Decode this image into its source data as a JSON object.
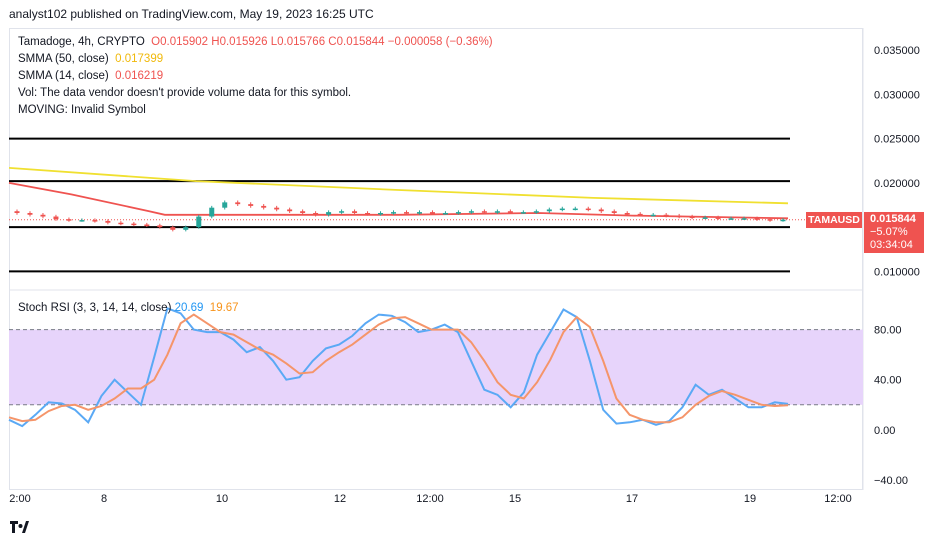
{
  "header": {
    "published": "analyst102 published on TradingView.com, May 19, 2023 16:25 UTC"
  },
  "legend": {
    "symbol": "Tamadoge, 4h, CRYPTO",
    "ohlc": "O0.015902 H0.015926 L0.015766 C0.015844 −0.000058 (−0.36%)",
    "sma50_label": "SMMA (50, close)",
    "sma50_value": "0.017399",
    "sma14_label": "SMMA (14, close)",
    "sma14_value": "0.016219",
    "vol_note": "Vol: The data vendor doesn't provide volume data for this symbol.",
    "moving_note": "MOVING: Invalid Symbol",
    "stoch_label": "Stoch RSI (3, 3, 14, 14, close)",
    "stoch_k": "20.69",
    "stoch_d": "19.67"
  },
  "ticker_box": "TAMAUSD",
  "price_tag": {
    "price": "0.015844",
    "change": "−5.07%",
    "countdown": "03:34:04"
  },
  "colors": {
    "sma50": "#f0e030",
    "sma14": "#ef5350",
    "k": "#5aa9f5",
    "d": "#f5956a",
    "band": "#e7d4fb"
  },
  "chart_data": [
    {
      "type": "candlestick",
      "title": "Tamadoge, 4h, CRYPTO",
      "price_axis_ticks": [
        "0.035000",
        "0.030000",
        "0.025000",
        "0.020000",
        "0.015000",
        "0.010000"
      ],
      "ylim": [
        0.0079,
        0.0375
      ],
      "x_ticks": [
        "2:00",
        "8",
        "10",
        "12",
        "12:00",
        "15",
        "17",
        "19",
        "12:00"
      ],
      "horizontal_levels": [
        0.025,
        0.0202,
        0.015,
        0.01
      ],
      "smma50": [
        [
          0,
          0.0217
        ],
        [
          0.24,
          0.0202
        ],
        [
          0.5,
          0.0192
        ],
        [
          0.75,
          0.0183
        ],
        [
          1,
          0.0177
        ]
      ],
      "smma14": [
        [
          0,
          0.02
        ],
        [
          0.08,
          0.0187
        ],
        [
          0.18,
          0.0168
        ],
        [
          0.2,
          0.0164
        ],
        [
          0.3,
          0.0164
        ],
        [
          0.5,
          0.0164
        ],
        [
          0.68,
          0.0166
        ],
        [
          0.8,
          0.0163
        ],
        [
          1,
          0.016
        ]
      ],
      "candles_close": [
        0.0166,
        0.0164,
        0.0162,
        0.0159,
        0.0158,
        0.0158,
        0.0157,
        0.0155,
        0.0154,
        0.0153,
        0.0152,
        0.015,
        0.0147,
        0.015,
        0.0162,
        0.0172,
        0.0178,
        0.0176,
        0.0174,
        0.0172,
        0.017,
        0.0168,
        0.0166,
        0.0164,
        0.0167,
        0.0168,
        0.0166,
        0.0165,
        0.0166,
        0.0167,
        0.0166,
        0.0167,
        0.0166,
        0.0166,
        0.0167,
        0.0168,
        0.0167,
        0.0168,
        0.0167,
        0.0167,
        0.0168,
        0.017,
        0.0171,
        0.0171,
        0.017,
        0.0168,
        0.0166,
        0.0165,
        0.0164,
        0.0164,
        0.0163,
        0.0162,
        0.0161,
        0.0161,
        0.016,
        0.016,
        0.016,
        0.0159,
        0.0158,
        0.01584
      ]
    },
    {
      "type": "line",
      "title": "Stoch RSI (3, 3, 14, 14, close)",
      "y_ticks": [
        "80.00",
        "40.00",
        "0.00",
        "−40.00"
      ],
      "ylim": [
        -48,
        110
      ],
      "band": [
        20,
        80
      ],
      "series": [
        {
          "name": "K",
          "values": [
            8,
            3,
            12,
            22,
            21,
            16,
            6,
            27,
            40,
            30,
            20,
            58,
            97,
            93,
            80,
            78,
            78,
            72,
            62,
            66,
            55,
            40,
            42,
            55,
            65,
            68,
            75,
            85,
            92,
            91,
            86,
            78,
            80,
            84,
            78,
            55,
            32,
            28,
            18,
            30,
            60,
            78,
            96,
            90,
            55,
            16,
            5,
            6,
            8,
            4,
            7,
            18,
            36,
            28,
            32,
            25,
            18,
            18,
            22,
            20.69
          ]
        },
        {
          "name": "D",
          "values": [
            10,
            7,
            8,
            15,
            19,
            20,
            16,
            19,
            25,
            33,
            33,
            40,
            60,
            85,
            92,
            85,
            78,
            76,
            70,
            64,
            60,
            53,
            45,
            46,
            55,
            62,
            68,
            76,
            84,
            89,
            90,
            85,
            80,
            80,
            80,
            70,
            55,
            38,
            28,
            25,
            38,
            56,
            78,
            90,
            82,
            55,
            25,
            12,
            8,
            6,
            6,
            10,
            20,
            27,
            31,
            28,
            24,
            20,
            19,
            19.67
          ]
        }
      ]
    }
  ]
}
